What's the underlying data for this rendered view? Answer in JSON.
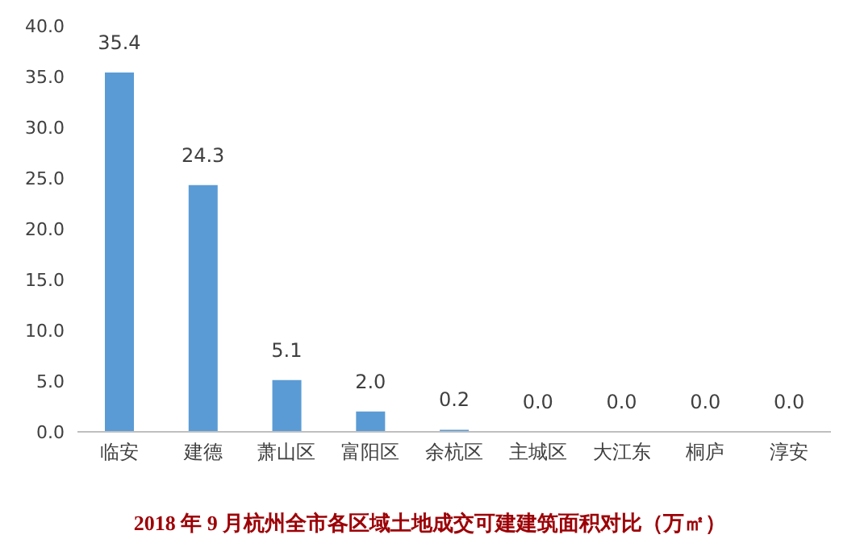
{
  "chart_data": {
    "type": "bar",
    "title": "2018 年 9 月杭州全市各区域土地成交可建建筑面积对比（万㎡）",
    "categories": [
      "临安",
      "建德",
      "萧山区",
      "富阳区",
      "余杭区",
      "主城区",
      "大江东",
      "桐庐",
      "淳安"
    ],
    "values": [
      35.4,
      24.3,
      5.1,
      2.0,
      0.2,
      0.0,
      0.0,
      0.0,
      0.0
    ],
    "color": "#5b9bd5",
    "ylim": [
      0,
      40
    ],
    "yticks": [
      {
        "value": 0,
        "label": "0.0"
      },
      {
        "value": 5,
        "label": "5.0"
      },
      {
        "value": 10,
        "label": "10.0"
      },
      {
        "value": 15,
        "label": "15.0"
      },
      {
        "value": 20,
        "label": "20.0"
      },
      {
        "value": 25,
        "label": "25.0"
      },
      {
        "value": 30,
        "label": "30.0"
      },
      {
        "value": 35,
        "label": "35.0"
      },
      {
        "value": 40,
        "label": "40.0"
      }
    ],
    "value_labels": [
      "35.4",
      "24.3",
      "5.1",
      "2.0",
      "0.2",
      "0.0",
      "0.0",
      "0.0",
      "0.0"
    ],
    "grid": false
  }
}
